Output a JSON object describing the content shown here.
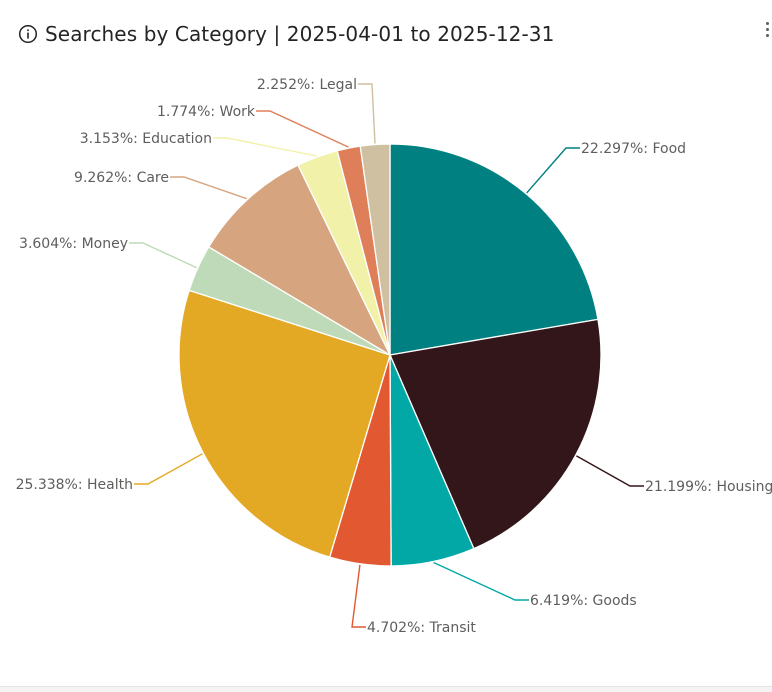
{
  "visual": {
    "title": "Searches by Category | 2025-04-01 to 2025-12-31",
    "info_icon": "info-circle-icon",
    "more_icon": "more-options-icon"
  },
  "chart_data": {
    "type": "pie",
    "title": "Searches by Category | 2025-04-01 to 2025-12-31",
    "label_format": "{percent}: {category}",
    "slices": [
      {
        "category": "Food",
        "percent": 22.297,
        "label": "22.297%: Food",
        "color": "#008080"
      },
      {
        "category": "Housing",
        "percent": 21.199,
        "label": "21.199%: Housing",
        "color": "#331619"
      },
      {
        "category": "Goods",
        "percent": 6.419,
        "label": "6.419%: Goods",
        "color": "#01a8a6"
      },
      {
        "category": "Transit",
        "percent": 4.702,
        "label": "4.702%: Transit",
        "color": "#e25830"
      },
      {
        "category": "Health",
        "percent": 25.338,
        "label": "25.338%: Health",
        "color": "#e4a924"
      },
      {
        "category": "Money",
        "percent": 3.604,
        "label": "3.604%: Money",
        "color": "#bfdab8"
      },
      {
        "category": "Care",
        "percent": 9.262,
        "label": "9.262%: Care",
        "color": "#d6a580"
      },
      {
        "category": "Education",
        "percent": 3.153,
        "label": "3.153%: Education",
        "color": "#f2f1a9"
      },
      {
        "category": "Work",
        "percent": 1.774,
        "label": "1.774%: Work",
        "color": "#df7f59"
      },
      {
        "category": "Legal",
        "percent": 2.252,
        "label": "2.252%: Legal",
        "color": "#cec0a0"
      }
    ]
  }
}
